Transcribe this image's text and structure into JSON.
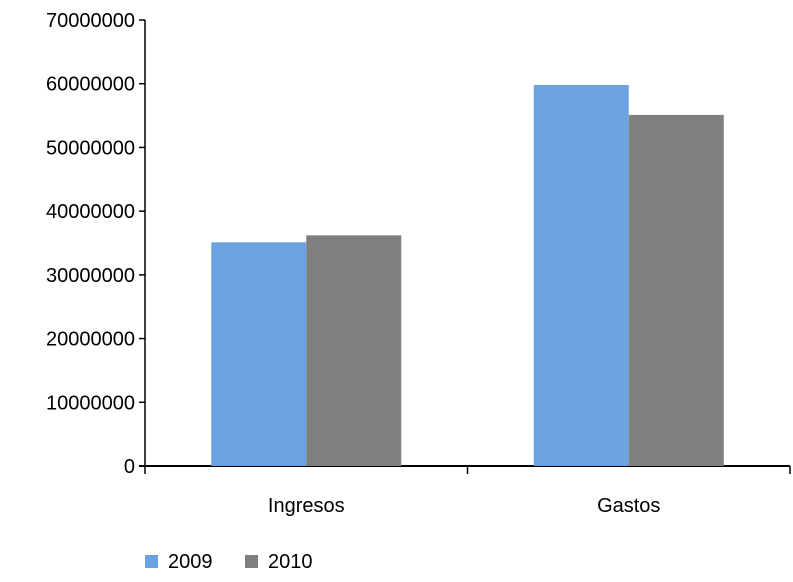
{
  "chart_data": {
    "type": "bar",
    "categories": [
      "Ingresos",
      "Gastos"
    ],
    "series": [
      {
        "name": "2009",
        "values": [
          35100000,
          59800000
        ],
        "color": "#6aa3e0"
      },
      {
        "name": "2010",
        "values": [
          36200000,
          55100000
        ],
        "color": "#7f7f7f"
      }
    ],
    "ylim": [
      0,
      70000000
    ],
    "yticks": [
      "0",
      "10000000",
      "20000000",
      "30000000",
      "40000000",
      "50000000",
      "60000000",
      "70000000"
    ],
    "grid": false,
    "legend": "bottom-left"
  }
}
